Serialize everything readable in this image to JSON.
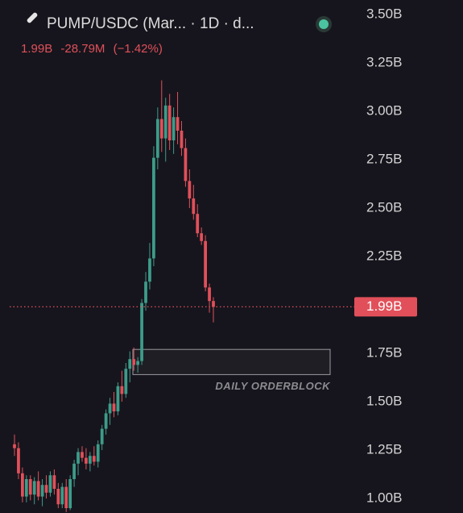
{
  "chart_data": {
    "type": "candlestick",
    "title": "PUMP/USDC (Mar... · 1D · d...",
    "header_values": [
      "1.99B",
      "-28.79M",
      "(−1.42%)"
    ],
    "open": [
      1.28,
      1.26,
      1.13,
      1.01,
      1.1,
      1.02,
      1.09,
      1.01,
      1.07,
      1.03,
      1.12,
      1.05,
      0.97,
      1.06,
      0.95,
      1.1,
      1.18,
      1.24,
      1.21,
      1.18,
      1.22,
      1.19,
      1.28,
      1.36,
      1.44,
      1.49,
      1.45,
      1.58,
      1.54,
      1.67,
      1.72,
      1.69,
      1.71,
      2.01,
      2.12,
      2.24,
      2.76,
      2.96,
      2.86,
      3.03,
      2.85,
      2.97,
      2.9,
      2.81,
      2.64,
      2.55,
      2.47,
      2.37,
      2.33,
      2.09,
      2.02
    ],
    "high": [
      1.33,
      1.29,
      1.16,
      1.12,
      1.12,
      1.11,
      1.14,
      1.1,
      1.12,
      1.14,
      1.15,
      1.08,
      1.08,
      1.1,
      1.12,
      1.2,
      1.26,
      1.27,
      1.26,
      1.24,
      1.27,
      1.3,
      1.38,
      1.46,
      1.52,
      1.55,
      1.6,
      1.66,
      1.7,
      1.76,
      1.78,
      1.73,
      2.03,
      2.17,
      2.32,
      2.82,
      3.02,
      3.16,
      3.07,
      3.09,
      3.02,
      3.1,
      2.95,
      2.86,
      2.7,
      2.62,
      2.52,
      2.4,
      2.36,
      2.11,
      2.04
    ],
    "low": [
      1.22,
      1.1,
      0.98,
      0.98,
      0.99,
      0.97,
      0.99,
      0.96,
      1.0,
      1.01,
      1.02,
      0.95,
      0.95,
      0.93,
      0.94,
      1.06,
      1.12,
      1.19,
      1.15,
      1.14,
      1.17,
      1.16,
      1.25,
      1.33,
      1.38,
      1.42,
      1.43,
      1.5,
      1.52,
      1.6,
      1.66,
      1.65,
      1.69,
      1.97,
      2.08,
      2.2,
      2.7,
      2.79,
      2.74,
      2.8,
      2.78,
      2.83,
      2.77,
      2.61,
      2.5,
      2.44,
      2.35,
      2.31,
      2.07,
      1.96,
      1.91
    ],
    "close": [
      1.26,
      1.13,
      1.01,
      1.1,
      1.02,
      1.09,
      1.01,
      1.07,
      1.03,
      1.12,
      1.05,
      0.97,
      1.06,
      0.95,
      1.1,
      1.18,
      1.24,
      1.21,
      1.18,
      1.22,
      1.19,
      1.28,
      1.36,
      1.44,
      1.49,
      1.45,
      1.58,
      1.54,
      1.67,
      1.72,
      1.69,
      1.71,
      2.01,
      2.12,
      2.24,
      2.76,
      2.96,
      2.86,
      3.03,
      2.85,
      2.97,
      2.9,
      2.81,
      2.64,
      2.55,
      2.47,
      2.37,
      2.33,
      2.09,
      2.02,
      1.99
    ],
    "up_color": "#3d9c89",
    "down_color": "#e1505a",
    "ylim": [
      0.925,
      3.575
    ],
    "yticks": [
      {
        "value": 3.5,
        "label": "3.50B"
      },
      {
        "value": 3.25,
        "label": "3.25B"
      },
      {
        "value": 3.0,
        "label": "3.00B"
      },
      {
        "value": 2.75,
        "label": "2.75B"
      },
      {
        "value": 2.5,
        "label": "2.50B"
      },
      {
        "value": 2.25,
        "label": "2.25B"
      },
      {
        "value": 1.75,
        "label": "1.75B"
      },
      {
        "value": 1.5,
        "label": "1.50B"
      },
      {
        "value": 1.25,
        "label": "1.25B"
      },
      {
        "value": 1.0,
        "label": "1.00B"
      }
    ],
    "last_price": {
      "value": 1.99,
      "label": "1.99B"
    },
    "zone": {
      "label": "DAILY ORDERBLOCK",
      "low": 1.64,
      "high": 1.77
    }
  }
}
